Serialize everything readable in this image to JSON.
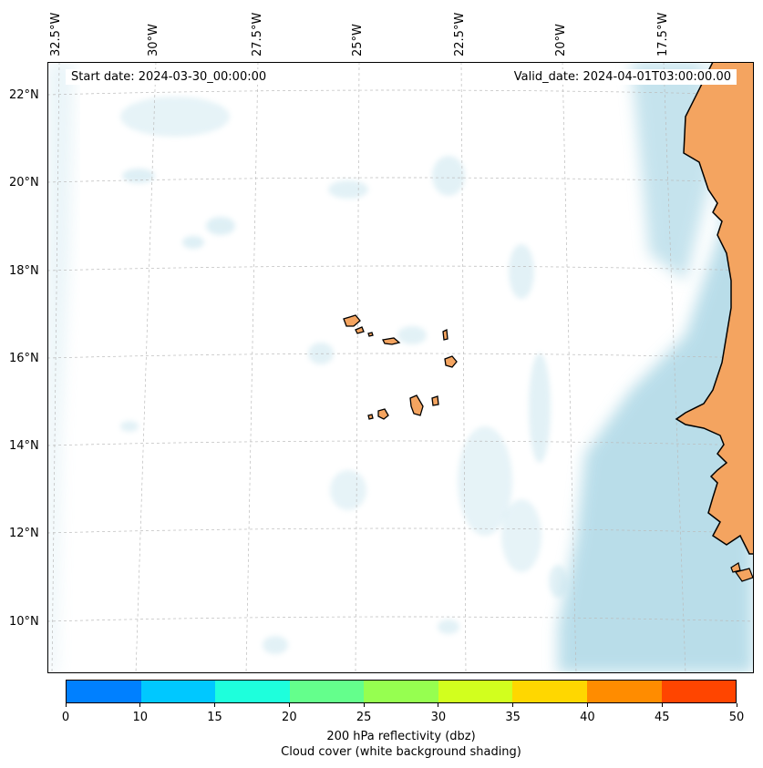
{
  "map": {
    "start_date": "Start date: 2024-03-30_00:00:00",
    "valid_date": "Valid_date: 2024-04-01T03:00:00.00",
    "lon_labels": [
      "32.5°W",
      "30°W",
      "27.5°W",
      "25°W",
      "22.5°W",
      "20°W",
      "17.5°W"
    ],
    "lat_labels": [
      "22°N",
      "20°N",
      "18°N",
      "16°N",
      "14°N",
      "12°N",
      "10°N"
    ],
    "colors": {
      "land": "#f4a460",
      "cloud": "#add8e6",
      "coast": "#000000",
      "grid": "#bbbbbb"
    }
  },
  "colorbar": {
    "ticks": [
      "0",
      "10",
      "15",
      "20",
      "25",
      "30",
      "35",
      "40",
      "45",
      "50"
    ],
    "colors": [
      "#0080ff",
      "#00c8ff",
      "#1effdc",
      "#64ff8c",
      "#96ff50",
      "#d2ff1e",
      "#ffd700",
      "#ff8c00",
      "#ff4500"
    ],
    "label_line1": "200 hPa reflectivity (dbz)",
    "label_line2": "Cloud cover (white background shading)"
  }
}
